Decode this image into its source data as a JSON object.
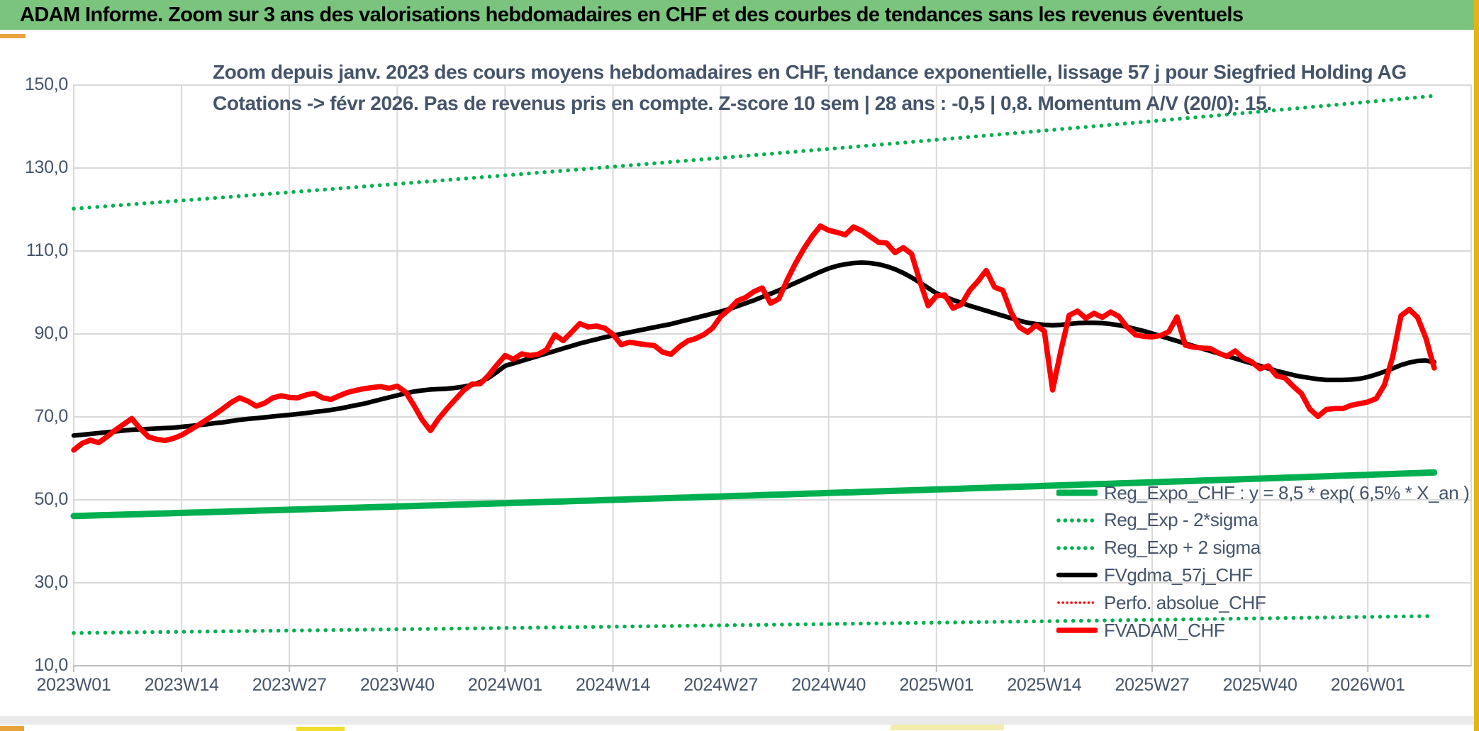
{
  "header": {
    "title": "ADAM Informe. Zoom sur 3 ans des valorisations hebdomadaires en CHF et des courbes de tendances sans les revenus éventuels"
  },
  "colors": {
    "header_green": "#7BC47E",
    "accent_gold": "#E8A33A",
    "excel_green": "#00B050",
    "red": "#FF0000",
    "black": "#000000",
    "grid": "#D9D9D9",
    "axis_text": "#44546A"
  },
  "chart_data": {
    "type": "line",
    "title_line1": "Zoom depuis janv. 2023 des cours moyens hebdomadaires en CHF, tendance exponentielle, lissage 57 j pour Siegfried Holding AG",
    "title_line2": "Cotations -> févr 2026. Pas de revenus pris en compte. Z-score 10 sem | 28 ans : -0,5 | 0,8. Momentum A/V (20/0): 15.",
    "x_tick_labels": [
      "2023W01",
      "2023W14",
      "2023W27",
      "2023W40",
      "2024W01",
      "2024W14",
      "2024W27",
      "2024W40",
      "2025W01",
      "2025W14",
      "2025W27",
      "2025W40",
      "2026W01"
    ],
    "y_tick_labels": [
      "150,0",
      "130,0",
      "110,0",
      "90,0",
      "70,0",
      "50,0",
      "30,0",
      "10,0"
    ],
    "y_tick_values": [
      150,
      130,
      110,
      90,
      70,
      50,
      30,
      10
    ],
    "ylim": [
      10,
      150
    ],
    "grid": true,
    "legend_position": "inside-bottom-right",
    "weeks_total": 165,
    "weeks_per_tick": 13,
    "series": [
      {
        "name": "Reg_Expo_CHF : y = 8,5 * exp( 6,5% *  X_an )",
        "kind": "exp",
        "start": 46.1,
        "end": 56.6,
        "color": "#00B050",
        "style": "solid",
        "width": 9
      },
      {
        "name": "Reg_Exp - 2*sigma",
        "kind": "exp",
        "start": 17.9,
        "end": 22.0,
        "color": "#00B050",
        "style": "dotted",
        "width": 5.5
      },
      {
        "name": "Reg_Exp + 2 sigma",
        "kind": "exp",
        "start": 120.2,
        "end": 147.4,
        "color": "#00B050",
        "style": "dotted",
        "width": 5.5
      },
      {
        "name": "FVgdma_57j_CHF",
        "kind": "values",
        "color": "#000000",
        "style": "solid",
        "width": 6.5,
        "values": [
          65.5,
          65.7,
          65.9,
          66.1,
          66.3,
          66.5,
          66.7,
          66.9,
          67.0,
          67.1,
          67.2,
          67.3,
          67.4,
          67.6,
          67.8,
          68.0,
          68.2,
          68.5,
          68.7,
          69.0,
          69.3,
          69.5,
          69.7,
          69.9,
          70.1,
          70.3,
          70.5,
          70.7,
          70.9,
          71.2,
          71.4,
          71.7,
          72.0,
          72.4,
          72.8,
          73.2,
          73.7,
          74.2,
          74.7,
          75.2,
          75.7,
          76.1,
          76.4,
          76.6,
          76.7,
          76.8,
          77.0,
          77.3,
          77.7,
          78.4,
          79.4,
          80.8,
          82.3,
          82.9,
          83.5,
          84.1,
          84.7,
          85.3,
          85.9,
          86.5,
          87.1,
          87.7,
          88.2,
          88.7,
          89.2,
          89.6,
          90.0,
          90.4,
          90.8,
          91.2,
          91.6,
          92.0,
          92.4,
          92.9,
          93.4,
          93.9,
          94.4,
          94.9,
          95.4,
          96.0,
          96.7,
          97.4,
          98.1,
          98.9,
          99.7,
          100.5,
          101.4,
          102.3,
          103.2,
          104.1,
          105.0,
          105.8,
          106.4,
          106.8,
          107.1,
          107.2,
          107.1,
          106.8,
          106.3,
          105.6,
          104.7,
          103.6,
          102.4,
          101.1,
          99.8,
          99.0,
          98.2,
          97.5,
          96.8,
          96.2,
          95.6,
          95.0,
          94.4,
          93.8,
          93.2,
          92.7,
          92.4,
          92.2,
          92.1,
          92.2,
          92.4,
          92.6,
          92.7,
          92.7,
          92.6,
          92.4,
          92.1,
          91.7,
          91.2,
          90.7,
          90.1,
          89.5,
          88.9,
          88.3,
          87.7,
          87.1,
          86.5,
          85.9,
          85.3,
          84.7,
          84.1,
          83.5,
          82.9,
          82.3,
          81.7,
          81.1,
          80.6,
          80.1,
          79.7,
          79.4,
          79.1,
          78.9,
          78.9,
          78.9,
          79.0,
          79.2,
          79.6,
          80.2,
          80.9,
          81.7,
          82.5,
          83.1,
          83.5,
          83.6,
          83.2
        ]
      },
      {
        "name": "Perfo. absolue_CHF",
        "kind": "ref",
        "values_from": "FVADAM_CHF",
        "color": "#FF0000",
        "style": "dotted",
        "width": 3.5
      },
      {
        "name": "FVADAM_CHF",
        "kind": "values",
        "color": "#FF0000",
        "style": "solid",
        "width": 7.5,
        "values": [
          62.0,
          63.6,
          64.4,
          63.8,
          65.2,
          66.8,
          68.2,
          69.6,
          67.2,
          65.2,
          64.6,
          64.3,
          64.8,
          65.6,
          66.8,
          68.0,
          69.3,
          70.6,
          72.0,
          73.5,
          74.6,
          73.8,
          72.6,
          73.3,
          74.6,
          75.1,
          74.7,
          74.6,
          75.3,
          75.7,
          74.6,
          74.2,
          75.1,
          75.9,
          76.4,
          76.8,
          77.1,
          77.3,
          76.9,
          77.4,
          76.0,
          72.8,
          69.3,
          66.7,
          69.6,
          72.0,
          74.2,
          76.4,
          77.9,
          78.0,
          80.0,
          82.5,
          84.8,
          83.9,
          85.2,
          84.8,
          85.1,
          86.2,
          89.8,
          88.4,
          90.4,
          92.5,
          91.7,
          91.9,
          91.4,
          89.9,
          87.4,
          88.0,
          87.7,
          87.4,
          87.2,
          85.6,
          85.1,
          86.9,
          88.3,
          88.9,
          89.9,
          91.4,
          94.2,
          95.9,
          98.0,
          98.8,
          100.2,
          101.1,
          97.4,
          98.5,
          103.0,
          107.0,
          110.5,
          113.5,
          116.0,
          115.0,
          114.5,
          113.9,
          115.8,
          114.9,
          113.5,
          112.1,
          111.9,
          109.6,
          110.8,
          109.3,
          102.7,
          96.8,
          99.2,
          99.4,
          96.2,
          97.1,
          100.5,
          102.7,
          105.3,
          101.3,
          100.5,
          95.2,
          91.6,
          90.4,
          92.1,
          90.7,
          76.5,
          86.0,
          94.5,
          95.5,
          93.8,
          95.0,
          94.0,
          95.3,
          94.2,
          91.6,
          89.8,
          89.4,
          89.3,
          89.6,
          90.5,
          94.1,
          87.3,
          86.8,
          86.6,
          86.5,
          85.4,
          84.6,
          85.9,
          84.2,
          83.3,
          81.6,
          82.3,
          79.9,
          79.4,
          77.4,
          75.6,
          71.9,
          70.1,
          71.8,
          72.0,
          72.0,
          72.8,
          73.2,
          73.6,
          74.4,
          77.7,
          84.5,
          94.4,
          95.9,
          94.0,
          89.0,
          81.8
        ]
      }
    ]
  }
}
